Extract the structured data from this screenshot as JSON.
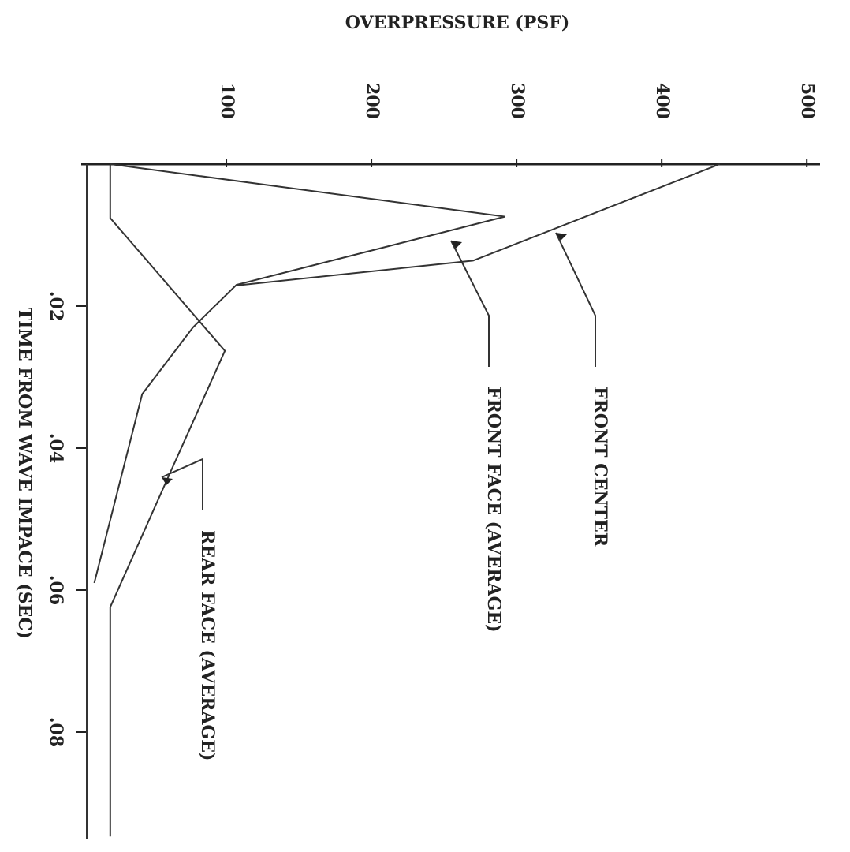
{
  "chart_data": {
    "type": "line",
    "title": "OVERPRESSURE (PSF)",
    "x_label": "TIME FROM WAVE IMPACE (SEC)",
    "xlim": [
      0,
      0.095
    ],
    "xticks": [
      {
        "value": 0.02,
        "label": ".02"
      },
      {
        "value": 0.04,
        "label": ".04"
      },
      {
        "value": 0.06,
        "label": ".06"
      },
      {
        "value": 0.08,
        "label": ".08"
      }
    ],
    "ylim": [
      0,
      520
    ],
    "yticks": [
      100,
      200,
      300,
      400,
      500
    ],
    "series": [
      {
        "name": "FRONT CENTER",
        "color": "#333333",
        "x": [
          0,
          0.0136,
          0.0171
        ],
        "values": [
          440,
          270,
          107
        ]
      },
      {
        "name": "FRONT FACE (AVERAGE)",
        "color": "#333333",
        "x": [
          0,
          0.0074,
          0.017,
          0.023,
          0.0324,
          0.059
        ],
        "values": [
          20,
          292,
          107,
          77,
          42,
          9
        ]
      },
      {
        "name": "REAR FACE (AVERAGE)",
        "color": "#333333",
        "x": [
          0,
          0.0076,
          0.0263,
          0.0436,
          0.0624,
          0.0947
        ],
        "values": [
          20,
          20,
          99,
          61,
          20,
          20
        ]
      }
    ]
  }
}
